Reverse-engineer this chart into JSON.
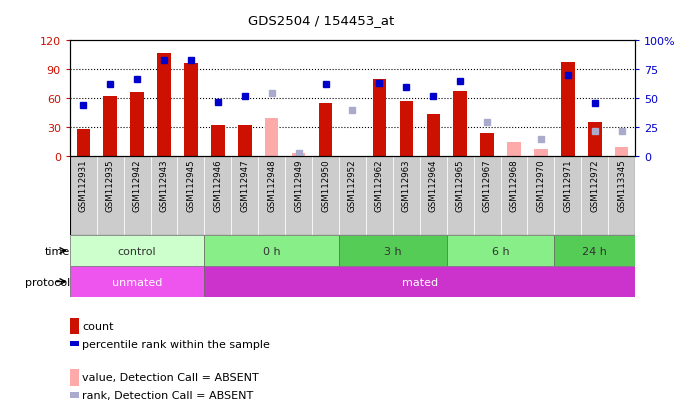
{
  "title": "GDS2504 / 154453_at",
  "samples": [
    "GSM112931",
    "GSM112935",
    "GSM112942",
    "GSM112943",
    "GSM112945",
    "GSM112946",
    "GSM112947",
    "GSM112948",
    "GSM112949",
    "GSM112950",
    "GSM112952",
    "GSM112962",
    "GSM112963",
    "GSM112964",
    "GSM112965",
    "GSM112967",
    "GSM112968",
    "GSM112970",
    "GSM112971",
    "GSM112972",
    "GSM113345"
  ],
  "count_present": [
    28,
    62,
    67,
    107,
    97,
    32,
    32,
    null,
    null,
    55,
    null,
    80,
    57,
    44,
    68,
    24,
    null,
    null,
    98,
    36,
    null
  ],
  "rank_present": [
    44,
    62,
    67,
    83,
    83,
    47,
    52,
    null,
    null,
    62,
    null,
    63,
    60,
    52,
    65,
    null,
    null,
    null,
    70,
    46,
    null
  ],
  "count_absent": [
    null,
    null,
    null,
    null,
    null,
    null,
    null,
    40,
    3,
    null,
    null,
    null,
    null,
    null,
    null,
    null,
    15,
    8,
    null,
    null,
    10
  ],
  "rank_absent": [
    null,
    null,
    null,
    null,
    null,
    null,
    null,
    55,
    3,
    null,
    40,
    null,
    null,
    null,
    null,
    30,
    null,
    15,
    null,
    22,
    22
  ],
  "left_ylim": [
    0,
    120
  ],
  "left_yticks": [
    0,
    30,
    60,
    90,
    120
  ],
  "right_ylim": [
    0,
    100
  ],
  "right_yticks": [
    0,
    25,
    50,
    75,
    100
  ],
  "right_yticklabels": [
    "0",
    "25",
    "50",
    "75",
    "100%"
  ],
  "bar_color": "#cc1100",
  "rank_color": "#0000cc",
  "absent_bar_color": "#ffaaaa",
  "absent_rank_color": "#aaaacc",
  "tick_bg_color": "#cccccc",
  "time_groups": [
    {
      "label": "control",
      "start": 0,
      "end": 5,
      "color": "#ccffcc"
    },
    {
      "label": "0 h",
      "start": 5,
      "end": 10,
      "color": "#88ee88"
    },
    {
      "label": "3 h",
      "start": 10,
      "end": 14,
      "color": "#55cc55"
    },
    {
      "label": "6 h",
      "start": 14,
      "end": 18,
      "color": "#88ee88"
    },
    {
      "label": "24 h",
      "start": 18,
      "end": 21,
      "color": "#55cc55"
    }
  ],
  "protocol_groups": [
    {
      "label": "unmated",
      "start": 0,
      "end": 5,
      "color": "#ee55ee"
    },
    {
      "label": "mated",
      "start": 5,
      "end": 21,
      "color": "#cc33cc"
    }
  ],
  "dotted_lines": [
    30,
    60,
    90
  ]
}
